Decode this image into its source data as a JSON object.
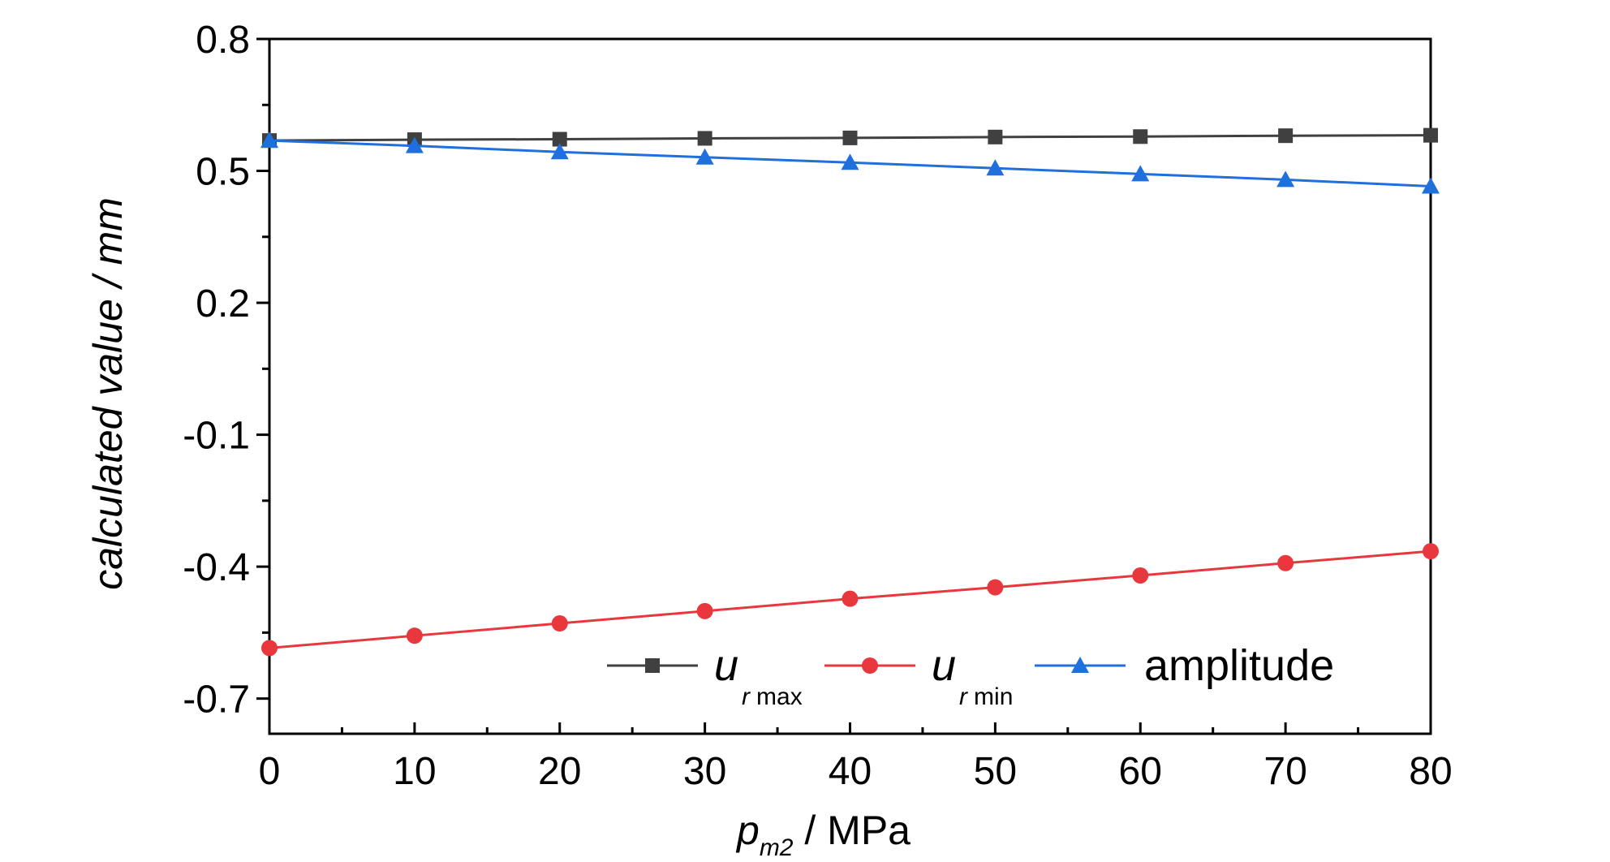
{
  "chart_data": {
    "type": "line",
    "title": "",
    "xlabel": {
      "main": "p",
      "sub": "m2",
      "rest": " / MPa"
    },
    "ylabel": "calculated value / mm",
    "xlim": [
      0,
      80
    ],
    "ylim": [
      -0.78,
      0.8
    ],
    "x_ticks": [
      "0",
      "10",
      "20",
      "30",
      "40",
      "50",
      "60",
      "70",
      "80"
    ],
    "y_ticks": [
      "0.8",
      "0.5",
      "0.2",
      "-0.1",
      "-0.4",
      "-0.7"
    ],
    "grid": false,
    "legend_position": "bottom-center",
    "x": [
      0,
      10,
      20,
      30,
      40,
      50,
      60,
      70,
      80
    ],
    "series": [
      {
        "name": {
          "main": "u",
          "sub": "r max"
        },
        "marker": "square",
        "color": "#404040",
        "values": [
          0.569,
          0.571,
          0.572,
          0.574,
          0.575,
          0.577,
          0.578,
          0.58,
          0.581
        ]
      },
      {
        "name": {
          "main": "u",
          "sub": "r min"
        },
        "marker": "circle",
        "color": "#e8383d",
        "values": [
          -0.585,
          -0.557,
          -0.529,
          -0.501,
          -0.473,
          -0.447,
          -0.42,
          -0.392,
          -0.365
        ]
      },
      {
        "name": {
          "main": "amplitude",
          "sub": ""
        },
        "marker": "triangle",
        "color": "#1f6fdc",
        "values": [
          0.569,
          0.557,
          0.543,
          0.531,
          0.519,
          0.506,
          0.493,
          0.48,
          0.465
        ]
      }
    ]
  }
}
